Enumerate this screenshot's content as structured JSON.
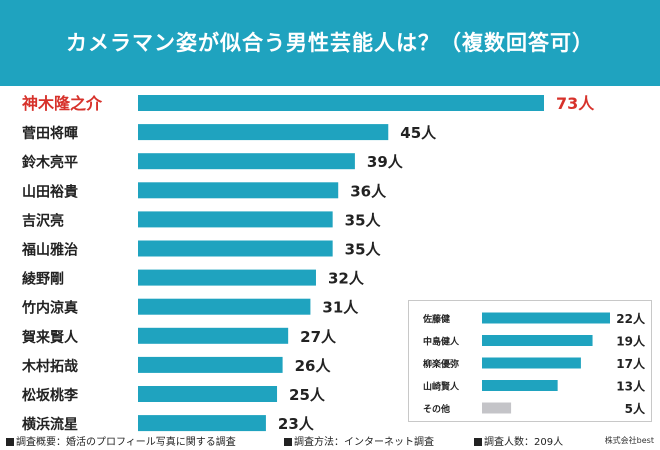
{
  "title": "カメラマン姿が似合う男性芸能人は？（複数回答可）",
  "colors": {
    "header": "#1fa3bf",
    "bar": "#1fa3bf",
    "highlight": "#d7322b",
    "other": "#c4c4c8",
    "text": "#222222"
  },
  "chart_data": [
    {
      "type": "bar",
      "orientation": "horizontal",
      "title": "カメラマン姿が似合う男性芸能人は？（複数回答可）",
      "categories": [
        "神木隆之介",
        "菅田将暉",
        "鈴木亮平",
        "山田裕貴",
        "吉沢亮",
        "福山雅治",
        "綾野剛",
        "竹内涼真",
        "賀来賢人",
        "木村拓哉",
        "松坂桃李",
        "横浜流星"
      ],
      "values": [
        73,
        45,
        39,
        36,
        35,
        35,
        32,
        31,
        27,
        26,
        25,
        23
      ],
      "value_labels": [
        "73人",
        "45人",
        "39人",
        "36人",
        "35人",
        "35人",
        "32人",
        "31人",
        "27人",
        "26人",
        "25人",
        "23人"
      ],
      "xlim": [
        0,
        80
      ],
      "highlight_index": 0,
      "grid": false
    },
    {
      "type": "bar",
      "orientation": "horizontal",
      "placement": "inset bottom-right",
      "categories": [
        "佐藤健",
        "中島健人",
        "柳楽優弥",
        "山崎賢人",
        "その他"
      ],
      "values": [
        22,
        19,
        17,
        13,
        5
      ],
      "value_labels": [
        "22人",
        "19人",
        "17人",
        "13人",
        "5人"
      ],
      "xlim": [
        0,
        22
      ],
      "grid": false
    }
  ],
  "footer": {
    "survey_overview": "調査概要：婚活のプロフィール写真に関する調査",
    "survey_method": "調査方法：インターネット調査",
    "respondents": "調査人数：209人",
    "credit": "株式会社best"
  }
}
